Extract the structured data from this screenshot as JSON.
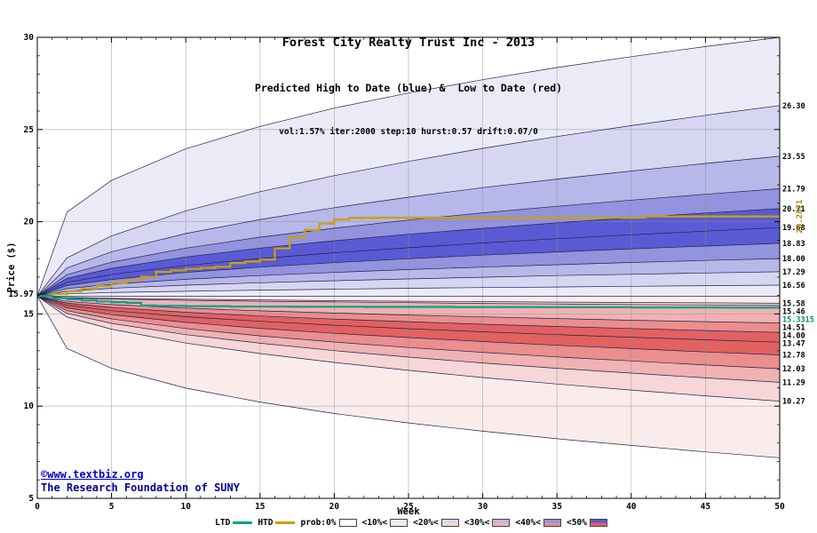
{
  "title": "Forest City Realty Trust Inc - 2013",
  "subtitle": "Predicted High to Date (blue) &  Low to Date (red)",
  "params_line": "vol:1.57% iter:2000 step:10 hurst:0.57 drift:0.07/0",
  "footer": {
    "link": "©www.textbiz.org",
    "org": "The Research Foundation of SUNY"
  },
  "legend": {
    "ltd_label": "LTD",
    "htd_label": "HTD",
    "prob_label": "prob:0%",
    "bands": [
      "<10%<",
      "<20%<",
      "<30%<",
      "<40%<",
      "<50%"
    ]
  },
  "chart_data": {
    "type": "area",
    "title": "Forest City Realty Trust Inc - 2013",
    "xlabel": "Week",
    "ylabel": "Price ($)",
    "xlim": [
      0,
      50
    ],
    "ylim": [
      5,
      30
    ],
    "xticks": [
      0,
      5,
      10,
      15,
      20,
      25,
      30,
      35,
      40,
      45,
      50
    ],
    "yticks": [
      5,
      10,
      15,
      20,
      25,
      30
    ],
    "grid": true,
    "legend_position": "bottom",
    "start_price": 15.97,
    "start_price_label": "15.97",
    "weeks": [
      0,
      2,
      5,
      10,
      15,
      20,
      25,
      30,
      35,
      40,
      45,
      50
    ],
    "band_levels": [
      10,
      20,
      30,
      40,
      50,
      50,
      40,
      30,
      20,
      10
    ],
    "high_curves": [
      [
        15.97,
        20.52,
        22.24,
        23.95,
        25.17,
        26.16,
        26.98,
        27.7,
        28.36,
        28.95,
        29.5,
        30.0
      ],
      [
        15.97,
        18.04,
        19.23,
        20.59,
        21.63,
        22.5,
        23.27,
        23.98,
        24.62,
        25.21,
        25.77,
        26.3
      ],
      [
        15.97,
        17.49,
        18.37,
        19.36,
        20.12,
        20.76,
        21.33,
        21.85,
        22.31,
        22.75,
        23.16,
        23.55
      ],
      [
        15.97,
        17.13,
        17.81,
        18.57,
        19.16,
        19.65,
        20.09,
        20.48,
        20.84,
        21.17,
        21.49,
        21.79
      ],
      [
        15.97,
        16.92,
        17.47,
        18.09,
        18.57,
        18.97,
        19.32,
        19.64,
        19.94,
        20.21,
        20.47,
        20.71
      ],
      [
        15.97,
        16.71,
        17.14,
        17.63,
        18.0,
        18.32,
        18.59,
        18.85,
        19.08,
        19.29,
        19.49,
        19.68
      ],
      [
        15.97,
        16.54,
        16.87,
        17.25,
        17.54,
        17.78,
        17.99,
        18.19,
        18.36,
        18.53,
        18.68,
        18.83
      ],
      [
        15.97,
        16.38,
        16.61,
        16.88,
        17.08,
        17.25,
        17.41,
        17.54,
        17.67,
        17.79,
        17.9,
        18.0
      ],
      [
        15.97,
        16.23,
        16.39,
        16.56,
        16.69,
        16.8,
        16.9,
        16.99,
        17.08,
        17.15,
        17.22,
        17.29
      ],
      [
        15.97,
        16.09,
        16.16,
        16.23,
        16.29,
        16.34,
        16.39,
        16.43,
        16.46,
        16.5,
        16.53,
        16.56
      ],
      [
        15.97,
        15.97,
        15.97,
        15.97,
        15.97,
        15.97,
        15.97,
        15.97,
        15.97,
        15.97,
        15.97,
        15.97
      ]
    ],
    "low_curves": [
      [
        15.97,
        15.97,
        15.97,
        15.97,
        15.97,
        15.97,
        15.97,
        15.97,
        15.97,
        15.97,
        15.97,
        15.97
      ],
      [
        15.97,
        15.89,
        15.85,
        15.8,
        15.76,
        15.72,
        15.69,
        15.67,
        15.64,
        15.62,
        15.6,
        15.58
      ],
      [
        15.97,
        15.87,
        15.81,
        15.74,
        15.69,
        15.65,
        15.61,
        15.57,
        15.54,
        15.51,
        15.49,
        15.46
      ],
      [
        15.97,
        15.68,
        15.51,
        15.32,
        15.17,
        15.05,
        14.94,
        14.84,
        14.75,
        14.66,
        14.58,
        14.51
      ],
      [
        15.97,
        15.58,
        15.35,
        15.09,
        14.89,
        14.72,
        14.58,
        14.44,
        14.32,
        14.21,
        14.1,
        14.0
      ],
      [
        15.97,
        15.47,
        15.18,
        14.85,
        14.6,
        14.39,
        14.2,
        14.03,
        13.88,
        13.74,
        13.6,
        13.47
      ],
      [
        15.97,
        15.33,
        14.96,
        14.54,
        14.22,
        13.95,
        13.72,
        13.5,
        13.3,
        13.12,
        12.94,
        12.78
      ],
      [
        15.97,
        15.18,
        14.73,
        14.21,
        13.81,
        13.48,
        13.18,
        12.92,
        12.67,
        12.45,
        12.23,
        12.03
      ],
      [
        15.97,
        15.03,
        14.49,
        13.88,
        13.41,
        13.01,
        12.66,
        12.34,
        12.05,
        11.79,
        11.53,
        11.29
      ],
      [
        15.97,
        14.83,
        14.17,
        13.42,
        12.85,
        12.37,
        11.94,
        11.55,
        11.2,
        10.87,
        10.56,
        10.27
      ],
      [
        15.97,
        13.13,
        12.05,
        10.98,
        10.22,
        9.6,
        9.09,
        8.64,
        8.23,
        7.87,
        7.52,
        7.2
      ]
    ],
    "htd_steps": [
      [
        0,
        15.97
      ],
      [
        1,
        16.08
      ],
      [
        2,
        16.22
      ],
      [
        3,
        16.38
      ],
      [
        4,
        16.52
      ],
      [
        5,
        16.68
      ],
      [
        6,
        16.84
      ],
      [
        7,
        17.02
      ],
      [
        8,
        17.28
      ],
      [
        9,
        17.36
      ],
      [
        10,
        17.44
      ],
      [
        11,
        17.5
      ],
      [
        12,
        17.56
      ],
      [
        13,
        17.76
      ],
      [
        14,
        17.84
      ],
      [
        15,
        17.95
      ],
      [
        16,
        18.55
      ],
      [
        17,
        19.15
      ],
      [
        18,
        19.55
      ],
      [
        19,
        19.9
      ],
      [
        20,
        20.12
      ],
      [
        21,
        20.2
      ],
      [
        23,
        20.22
      ],
      [
        40,
        20.22
      ],
      [
        41,
        20.2871
      ],
      [
        50,
        20.2871
      ]
    ],
    "ltd_steps": [
      [
        0,
        15.97
      ],
      [
        1,
        15.86
      ],
      [
        2,
        15.79
      ],
      [
        3,
        15.73
      ],
      [
        4,
        15.68
      ],
      [
        5,
        15.64
      ],
      [
        6,
        15.6
      ],
      [
        7,
        15.46
      ],
      [
        8,
        15.44
      ],
      [
        10,
        15.42
      ],
      [
        13,
        15.4
      ],
      [
        17,
        15.39
      ],
      [
        22,
        15.38
      ],
      [
        28,
        15.37
      ],
      [
        34,
        15.36
      ],
      [
        40,
        15.35
      ],
      [
        46,
        15.34
      ],
      [
        50,
        15.3315
      ]
    ],
    "right_labels": [
      "26.30",
      "23.55",
      "21.79",
      "20.71",
      "19.68",
      "18.83",
      "18.00",
      "17.29",
      "16.56",
      "15.58",
      "15.46",
      "14.51",
      "14.00",
      "13.47",
      "12.78",
      "12.03",
      "11.29",
      "10.27"
    ],
    "htd_final_label": "20.2871",
    "ltd_final_label": "15.3315",
    "colors": {
      "blue": {
        "10": "#ebebf8",
        "20": "#d6d6f2",
        "30": "#b7b7e9",
        "40": "#9393de",
        "50": "#5a5ad4"
      },
      "red": {
        "10": "#fbecec",
        "20": "#f6d6d6",
        "30": "#f0b2b2",
        "40": "#ea8e8e",
        "50": "#e26161"
      },
      "curve_stroke": "#20204a",
      "htd": "#c9a100",
      "htd_label": "#a98700",
      "ltd": "#00a287",
      "ltd_label": "#008f77",
      "grid": "#8f8f8f"
    }
  }
}
